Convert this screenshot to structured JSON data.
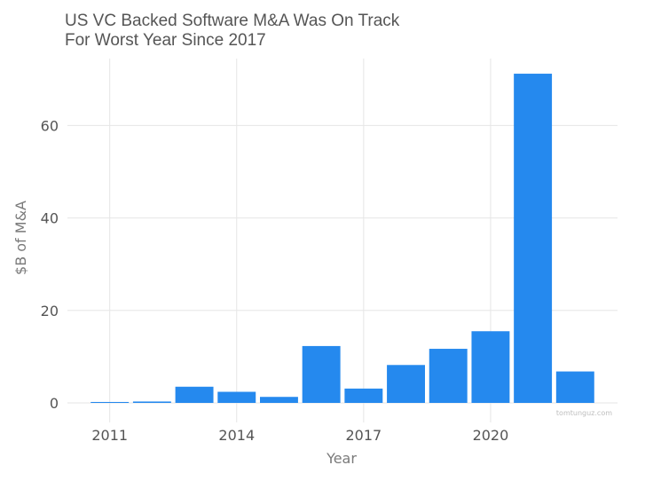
{
  "chart_data": {
    "type": "bar",
    "title_lines": [
      "US VC Backed Software M&A Was On Track",
      "For Worst Year Since 2017"
    ],
    "xlabel": "Year",
    "ylabel": "$B of M&A",
    "x": [
      2011,
      2012,
      2013,
      2014,
      2015,
      2016,
      2017,
      2018,
      2019,
      2020,
      2021,
      2022
    ],
    "values": [
      0.2,
      0.3,
      3.5,
      2.4,
      1.3,
      12.3,
      3.1,
      8.2,
      11.7,
      15.5,
      71.2,
      6.8
    ],
    "xticks": [
      2011,
      2014,
      2017,
      2020
    ],
    "yticks": [
      0,
      20,
      40,
      60
    ],
    "ylim": [
      0,
      74
    ],
    "grid": true,
    "bar_color": "#2589EE",
    "watermark": "tomtunguz.com"
  }
}
